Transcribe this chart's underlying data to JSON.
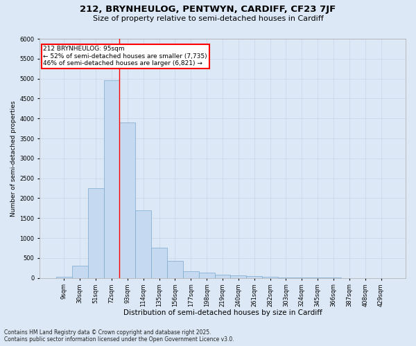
{
  "title1": "212, BRYNHEULOG, PENTWYN, CARDIFF, CF23 7JF",
  "title2": "Size of property relative to semi-detached houses in Cardiff",
  "xlabel": "Distribution of semi-detached houses by size in Cardiff",
  "ylabel": "Number of semi-detached properties",
  "categories": [
    "9sqm",
    "30sqm",
    "51sqm",
    "72sqm",
    "93sqm",
    "114sqm",
    "135sqm",
    "156sqm",
    "177sqm",
    "198sqm",
    "219sqm",
    "240sqm",
    "261sqm",
    "282sqm",
    "303sqm",
    "324sqm",
    "345sqm",
    "366sqm",
    "387sqm",
    "408sqm",
    "429sqm"
  ],
  "values": [
    30,
    310,
    2250,
    4950,
    3900,
    1700,
    750,
    430,
    170,
    140,
    80,
    60,
    50,
    30,
    15,
    10,
    5,
    5,
    2,
    1,
    1
  ],
  "bar_color": "#c5d9f0",
  "bar_edge_color": "#7ba7ce",
  "annotation_title": "212 BRYNHEULOG: 95sqm",
  "annotation_line1": "← 52% of semi-detached houses are smaller (7,735)",
  "annotation_line2": "46% of semi-detached houses are larger (6,821) →",
  "annotation_box_color": "white",
  "annotation_box_edge": "red",
  "ylim": [
    0,
    6000
  ],
  "yticks": [
    0,
    500,
    1000,
    1500,
    2000,
    2500,
    3000,
    3500,
    4000,
    4500,
    5000,
    5500,
    6000
  ],
  "grid_color": "#c8d4e8",
  "background_color": "#dce8f5",
  "footer_line1": "Contains HM Land Registry data © Crown copyright and database right 2025.",
  "footer_line2": "Contains public sector information licensed under the Open Government Licence v3.0.",
  "title1_fontsize": 9.5,
  "title2_fontsize": 8,
  "xlabel_fontsize": 7.5,
  "ylabel_fontsize": 6.5,
  "tick_fontsize": 6,
  "footer_fontsize": 5.5,
  "annotation_fontsize": 6.5,
  "red_line_index": 3.5
}
